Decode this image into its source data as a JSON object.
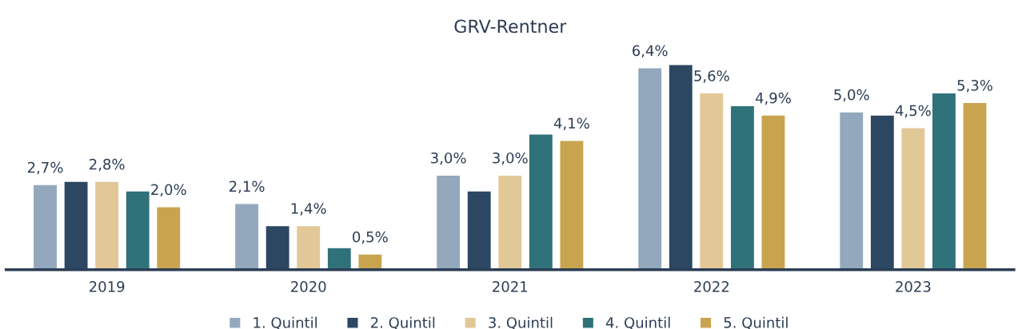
{
  "chart_data": {
    "type": "bar",
    "title": "GRV-Rentner",
    "categories": [
      "2019",
      "2020",
      "2021",
      "2022",
      "2023"
    ],
    "series": [
      {
        "name": "1. Quintil",
        "color": "#93a8bc",
        "values": [
          2.7,
          2.1,
          3.0,
          6.4,
          5.0
        ],
        "value_labels": [
          "2,7%",
          "2,1%",
          "3,0%",
          "6,4%",
          "5,0%"
        ]
      },
      {
        "name": "2. Quintil",
        "color": "#2c4762",
        "values": [
          2.8,
          1.4,
          2.5,
          6.5,
          4.9
        ],
        "value_labels": [
          null,
          null,
          null,
          null,
          null
        ]
      },
      {
        "name": "3. Quintil",
        "color": "#e2c797",
        "values": [
          2.8,
          1.4,
          3.0,
          5.6,
          4.5
        ],
        "value_labels": [
          "2,8%",
          "1,4%",
          "3,0%",
          "5,6%",
          "4,5%"
        ]
      },
      {
        "name": "4. Quintil",
        "color": "#2f727a",
        "values": [
          2.5,
          0.7,
          4.3,
          5.2,
          5.6
        ],
        "value_labels": [
          null,
          null,
          null,
          null,
          null
        ]
      },
      {
        "name": "5. Quintil",
        "color": "#c9a44f",
        "values": [
          2.0,
          0.5,
          4.1,
          4.9,
          5.3
        ],
        "value_labels": [
          "2,0%",
          "0,5%",
          "4,1%",
          "4,9%",
          "5,3%"
        ]
      }
    ],
    "grid": false,
    "legend": "bottom"
  }
}
